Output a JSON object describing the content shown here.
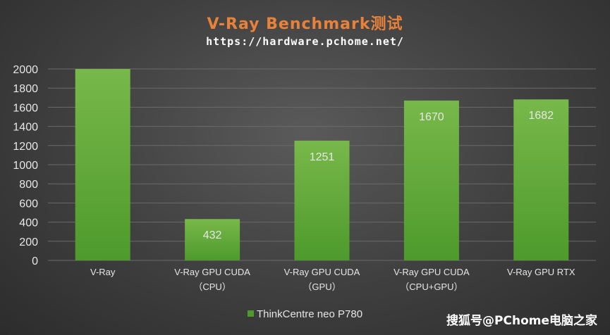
{
  "colors": {
    "title": "#e8823a",
    "bar_top": "#78b84a",
    "bar_bottom": "#4e9a2c",
    "grid": "#6a6a6a",
    "axis_text": "#e6e6e6",
    "data_label": "#e6e6e6"
  },
  "watermark": "搜狐号@PChome电脑之家",
  "chart_data": {
    "type": "bar",
    "title": "V-Ray Benchmark测试",
    "subtitle": "https://hardware.pchome.net/",
    "categories": [
      [
        "V-Ray"
      ],
      [
        "V-Ray GPU CUDA",
        "（CPU）"
      ],
      [
        "V-Ray GPU CUDA",
        "（GPU）"
      ],
      [
        "V-Ray GPU CUDA",
        "（CPU+GPU）"
      ],
      [
        "V-Ray GPU RTX"
      ]
    ],
    "series": [
      {
        "name": "ThinkCentre neo P780",
        "values": [
          2000,
          432,
          1251,
          1670,
          1682
        ]
      }
    ],
    "data_labels": [
      "",
      "432",
      "1251",
      "1670",
      "1682"
    ],
    "yticks": [
      "0",
      "200",
      "400",
      "600",
      "800",
      "1000",
      "1200",
      "1400",
      "1600",
      "1800",
      "2000"
    ],
    "ylim": [
      0,
      2000
    ],
    "grid": true,
    "legend": "bottom"
  }
}
